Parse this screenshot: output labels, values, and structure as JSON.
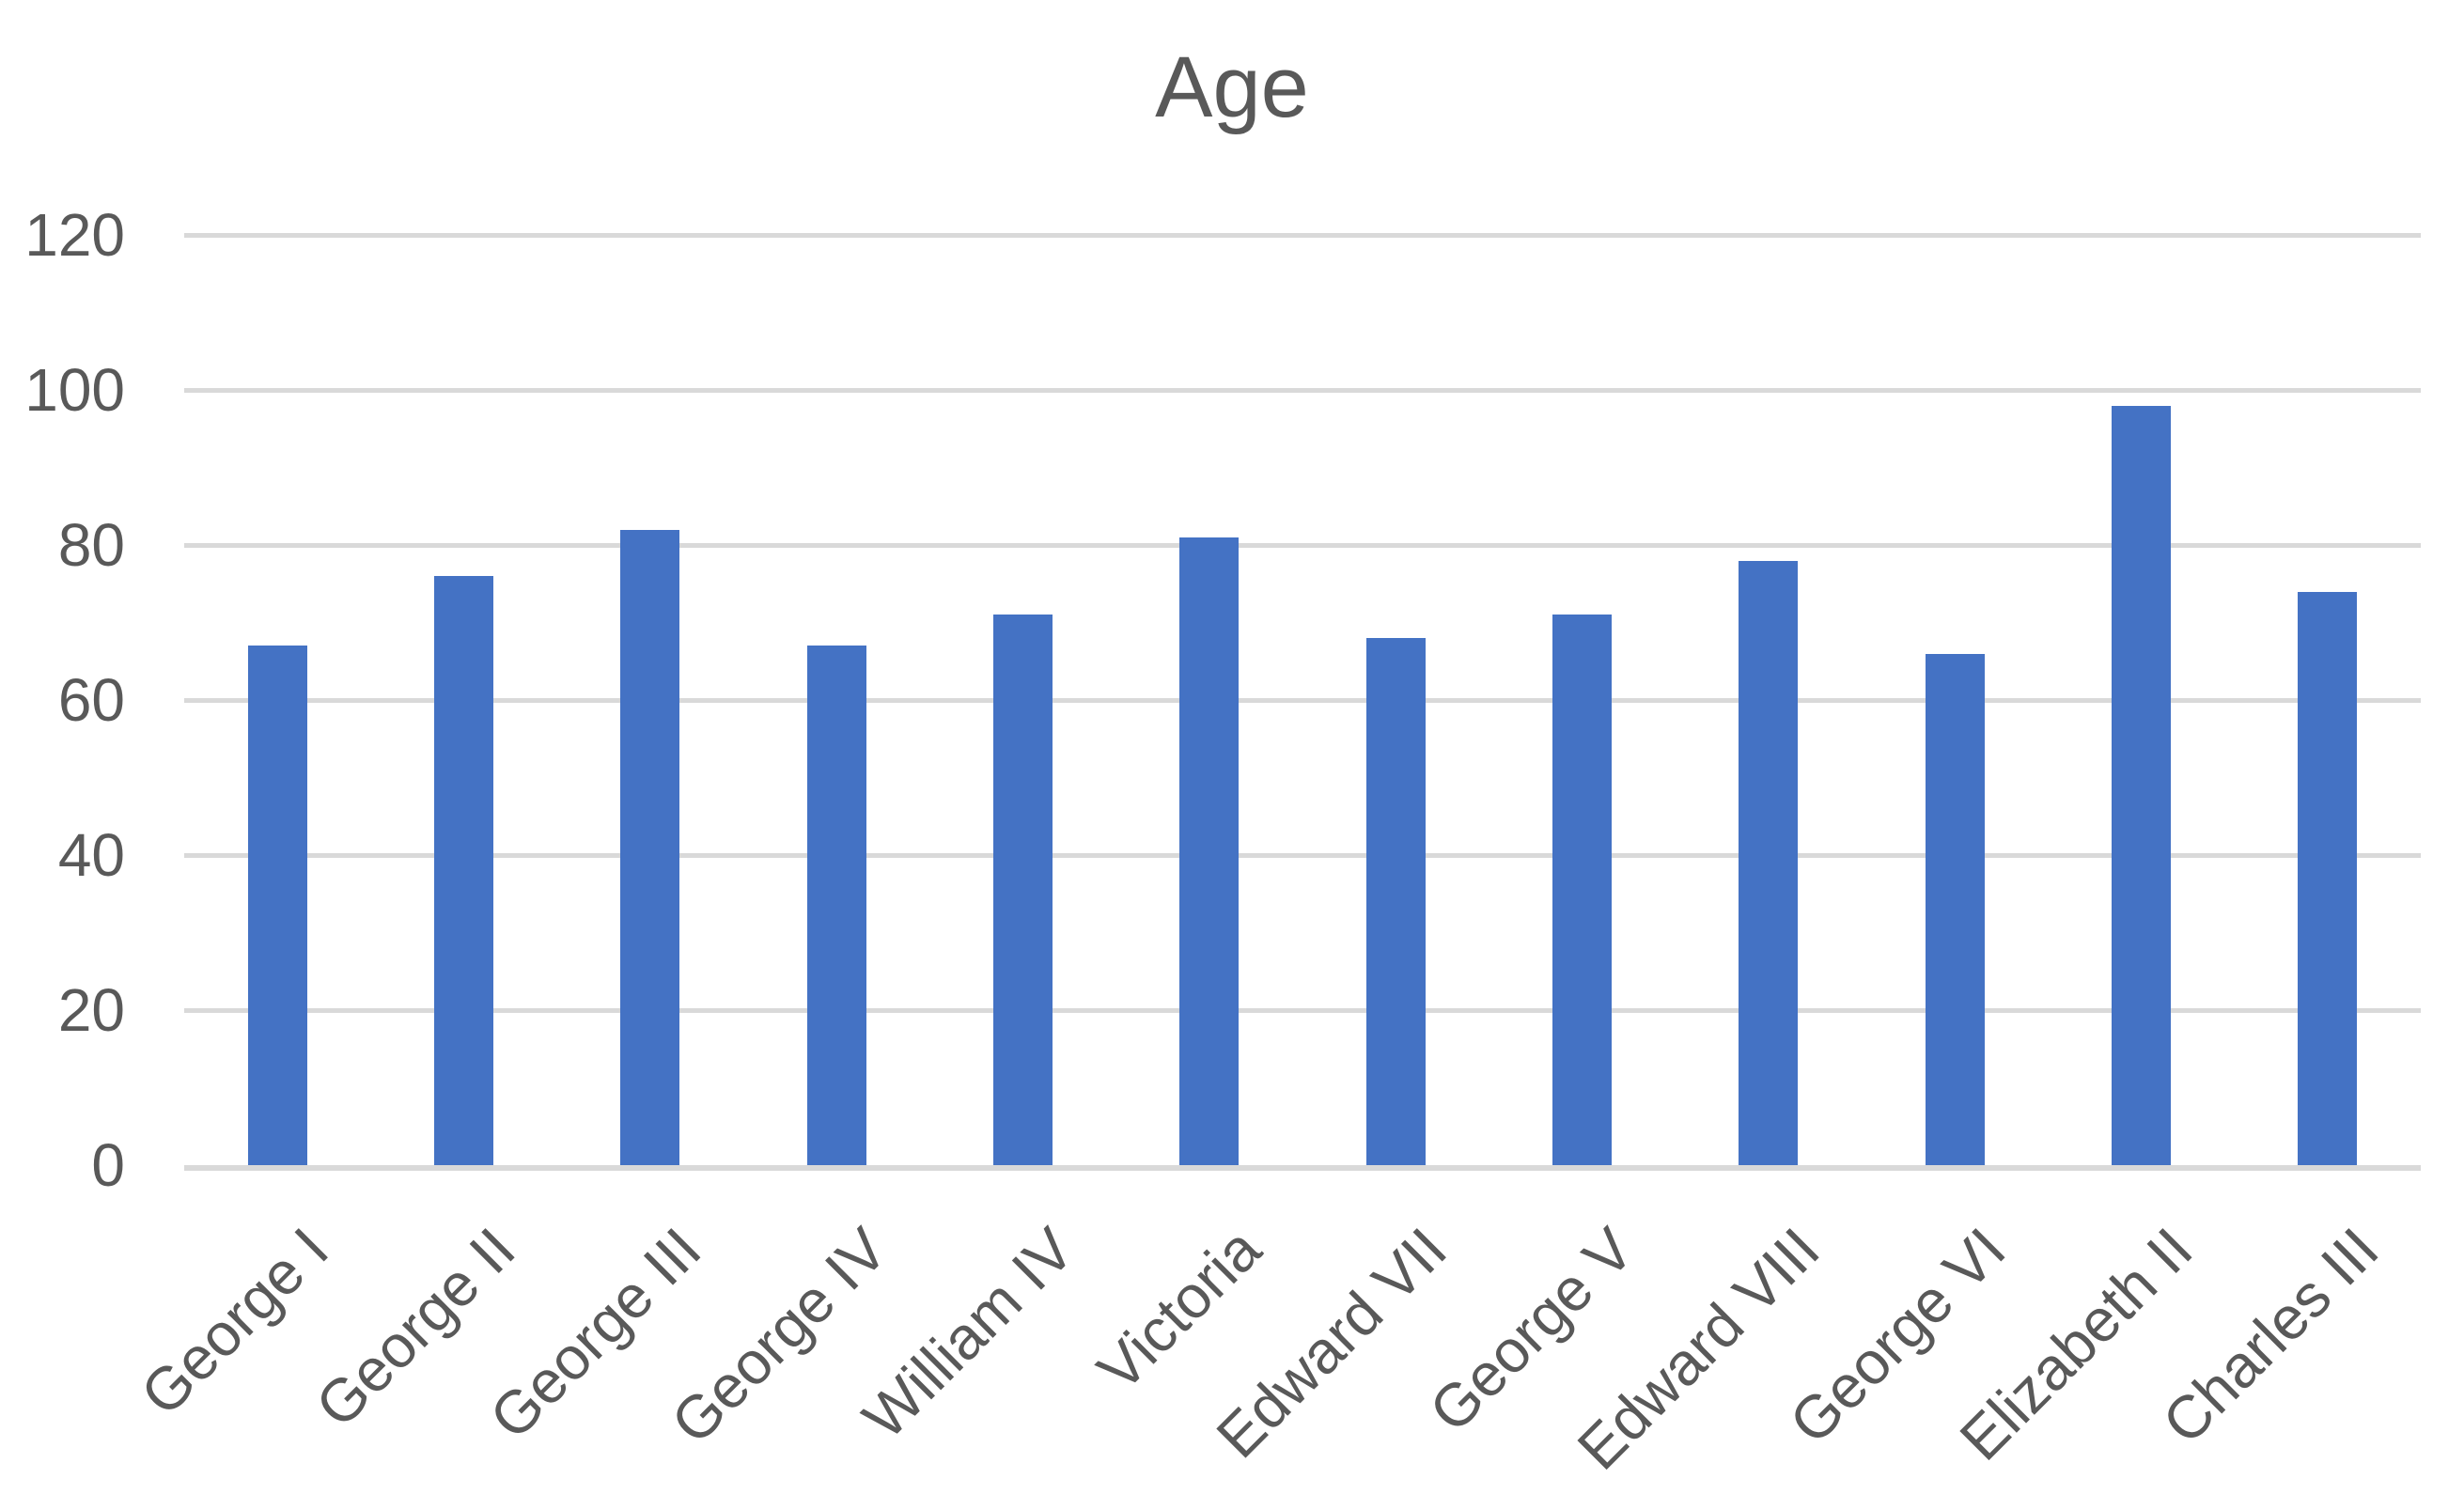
{
  "chart_data": {
    "type": "bar",
    "title": "Age",
    "categories": [
      "George I",
      "George II",
      "George III",
      "George IV",
      "William IV",
      "Victoria",
      "Edward VII",
      "George V",
      "Edward VIII",
      "George VI",
      "Elizabeth II",
      "Charles III"
    ],
    "values": [
      67,
      76,
      82,
      67,
      71,
      81,
      68,
      71,
      78,
      66,
      98,
      74
    ],
    "series": [
      {
        "name": "Age",
        "values": [
          67,
          76,
          82,
          67,
          71,
          81,
          68,
          71,
          78,
          66,
          98,
          74
        ]
      }
    ],
    "xlabel": "",
    "ylabel": "",
    "ylim": [
      0,
      120
    ],
    "yticks": [
      0,
      20,
      40,
      60,
      80,
      100,
      120
    ],
    "grid": true,
    "legend": "none",
    "x_tick_rotation_deg": 45,
    "colors": {
      "bar_fill": "#4472C4",
      "gridline": "#D9D9D9",
      "axis_line": "#D9D9D9",
      "text": "#595959",
      "background": "#FFFFFF"
    }
  }
}
